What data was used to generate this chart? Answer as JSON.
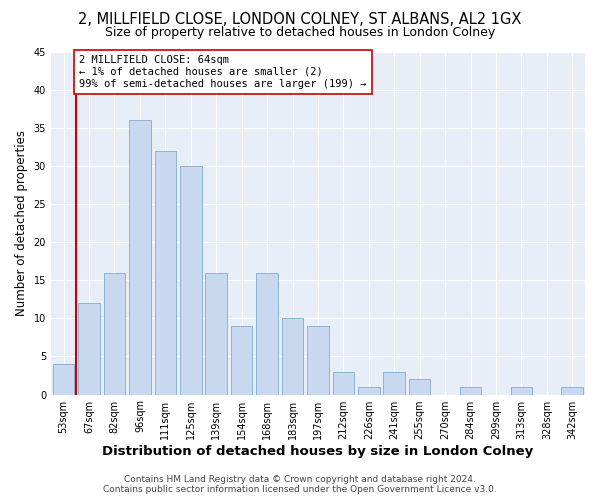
{
  "title": "2, MILLFIELD CLOSE, LONDON COLNEY, ST ALBANS, AL2 1GX",
  "subtitle": "Size of property relative to detached houses in London Colney",
  "xlabel": "Distribution of detached houses by size in London Colney",
  "ylabel": "Number of detached properties",
  "footer_line1": "Contains HM Land Registry data © Crown copyright and database right 2024.",
  "footer_line2": "Contains public sector information licensed under the Open Government Licence v3.0.",
  "bar_labels": [
    "53sqm",
    "67sqm",
    "82sqm",
    "96sqm",
    "111sqm",
    "125sqm",
    "139sqm",
    "154sqm",
    "168sqm",
    "183sqm",
    "197sqm",
    "212sqm",
    "226sqm",
    "241sqm",
    "255sqm",
    "270sqm",
    "284sqm",
    "299sqm",
    "313sqm",
    "328sqm",
    "342sqm"
  ],
  "bar_values": [
    4,
    12,
    16,
    36,
    32,
    30,
    16,
    9,
    16,
    10,
    9,
    3,
    1,
    3,
    2,
    0,
    1,
    0,
    1,
    0,
    1
  ],
  "bar_color": "#c8d8ee",
  "bar_edge_color": "#8ab4d8",
  "highlight_color": "#cc0000",
  "annotation_title": "2 MILLFIELD CLOSE: 64sqm",
  "annotation_line1": "← 1% of detached houses are smaller (2)",
  "annotation_line2": "99% of semi-detached houses are larger (199) →",
  "annotation_box_color": "#ffffff",
  "annotation_box_edge": "#cc0000",
  "bg_color": "#e8eef8",
  "ylim": [
    0,
    45
  ],
  "yticks": [
    0,
    5,
    10,
    15,
    20,
    25,
    30,
    35,
    40,
    45
  ],
  "title_fontsize": 10.5,
  "subtitle_fontsize": 9,
  "xlabel_fontsize": 9.5,
  "ylabel_fontsize": 8.5,
  "tick_fontsize": 7,
  "annotation_fontsize": 7.5,
  "footer_fontsize": 6.5
}
